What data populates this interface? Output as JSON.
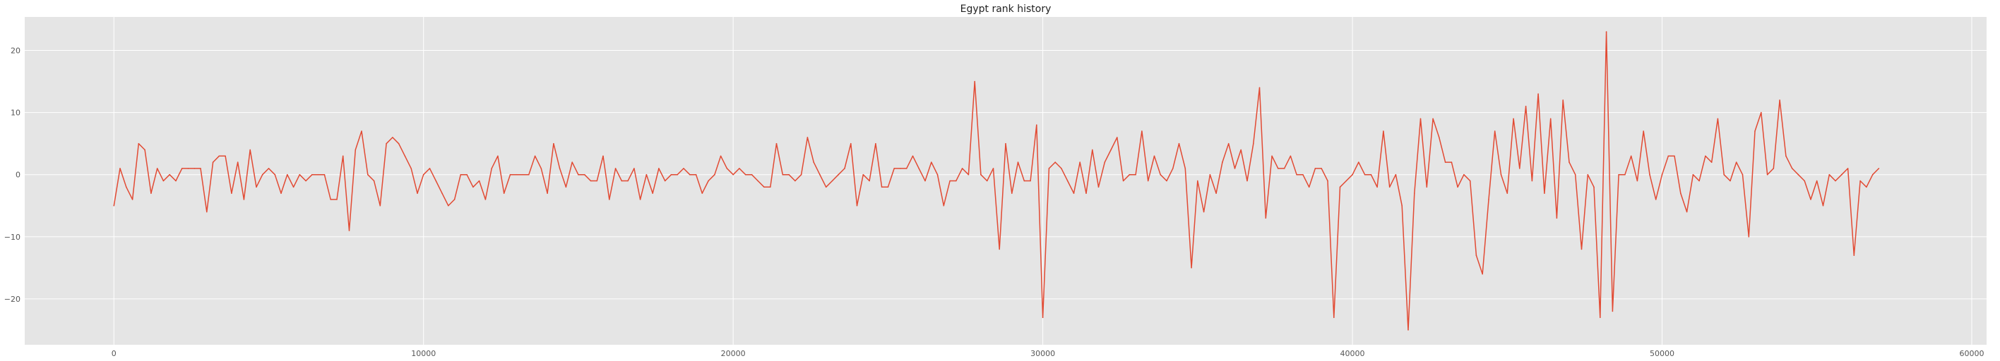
{
  "chart_data": {
    "type": "line",
    "title": "Egypt rank history",
    "xlabel": "",
    "ylabel": "",
    "xlim": [
      -2880,
      60480
    ],
    "ylim": [
      -27.4,
      25.4
    ],
    "xticks": [
      0,
      10000,
      20000,
      30000,
      40000,
      50000,
      60000
    ],
    "xtick_labels": [
      "0",
      "10000",
      "20000",
      "30000",
      "40000",
      "50000",
      "60000"
    ],
    "yticks": [
      -20,
      -10,
      0,
      10,
      20
    ],
    "ytick_labels": [
      "−20",
      "−10",
      "0",
      "10",
      "20"
    ],
    "grid": true,
    "style": {
      "background": "#e5e5e5",
      "grid_color": "#ffffff",
      "line_color": "#e24a33"
    },
    "series": [
      {
        "x_start": 0,
        "x_step": 200,
        "values": [
          -5,
          1,
          -2,
          -4,
          5,
          4,
          -3,
          1,
          -1,
          0,
          -1,
          1,
          1,
          1,
          1,
          -6,
          2,
          3,
          3,
          -3,
          2,
          -4,
          4,
          -2,
          0,
          1,
          0,
          -3,
          0,
          -2,
          0,
          -1,
          0,
          0,
          0,
          -4,
          -4,
          3,
          -9,
          4,
          7,
          0,
          -1,
          -5,
          5,
          6,
          5,
          3,
          1,
          -3,
          0,
          1,
          -1,
          -3,
          -5,
          -4,
          0,
          0,
          -2,
          -1,
          -4,
          1,
          3,
          -3,
          0,
          0,
          0,
          0,
          3,
          1,
          -3,
          5,
          1,
          -2,
          2,
          0,
          0,
          -1,
          -1,
          3,
          -4,
          1,
          -1,
          -1,
          1,
          -4,
          0,
          -3,
          1,
          -1,
          0,
          0,
          1,
          0,
          0,
          -3,
          -1,
          0,
          3,
          1,
          0,
          1,
          0,
          0,
          -1,
          -2,
          -2,
          5,
          0,
          0,
          -1,
          0,
          6,
          2,
          0,
          -2,
          -1,
          0,
          1,
          5,
          -5,
          0,
          -1,
          5,
          -2,
          -2,
          1,
          1,
          1,
          3,
          1,
          -1,
          2,
          0,
          -5,
          -1,
          -1,
          1,
          0,
          15,
          0,
          -1,
          1,
          -12,
          5,
          -3,
          2,
          -1,
          -1,
          8,
          -23,
          1,
          2,
          1,
          -1,
          -3,
          2,
          -3,
          4,
          -2,
          2,
          4,
          6,
          -1,
          0,
          0,
          7,
          -1,
          3,
          0,
          -1,
          1,
          5,
          1,
          -15,
          -1,
          -6,
          0,
          -3,
          2,
          5,
          1,
          4,
          -1,
          5,
          14,
          -7,
          3,
          1,
          1,
          3,
          0,
          0,
          -2,
          1,
          1,
          -1,
          -23,
          -2,
          -1,
          0,
          2,
          0,
          0,
          -2,
          7,
          -2,
          0,
          -5,
          -25,
          -3,
          9,
          -2,
          9,
          6,
          2,
          2,
          -2,
          0,
          -1,
          -13,
          -16,
          -4,
          7,
          0,
          -3,
          9,
          1,
          11,
          -1,
          13,
          -3,
          9,
          -7,
          12,
          2,
          0,
          -12,
          0,
          -2,
          -23,
          23,
          -22,
          0,
          0,
          3,
          -1,
          7,
          0,
          -4,
          0,
          3,
          3,
          -3,
          -6,
          0,
          -1,
          3,
          2,
          9,
          0,
          -1,
          2,
          0,
          -10,
          7,
          10,
          0,
          1,
          12,
          3,
          1,
          0,
          -1,
          -4,
          -1,
          -5,
          0,
          -1,
          0,
          1,
          -13,
          -1,
          -2,
          0,
          1
        ]
      }
    ]
  }
}
